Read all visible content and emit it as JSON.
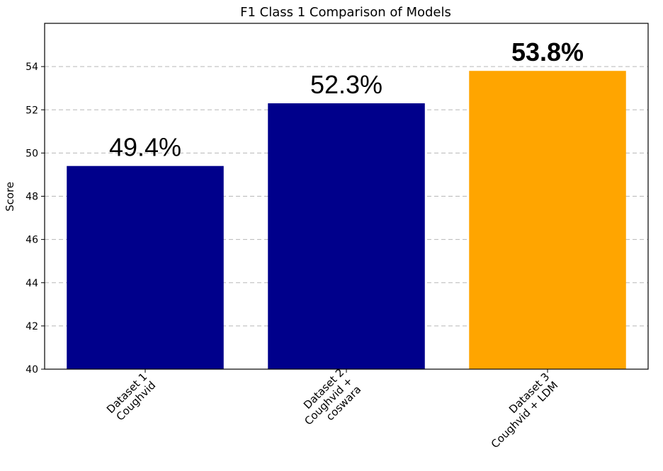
{
  "chart_data": {
    "type": "bar",
    "title": "F1 Class 1 Comparison of Models",
    "xlabel": "",
    "ylabel": "Score",
    "ylim": [
      40,
      56
    ],
    "yticks": [
      40,
      42,
      44,
      46,
      48,
      50,
      52,
      54
    ],
    "grid": true,
    "categories": [
      [
        "Dataset 1",
        "Coughvid"
      ],
      [
        "Dataset 2",
        "Coughvid +",
        "coswara"
      ],
      [
        "Dataset 3",
        "Coughvid + LDM"
      ]
    ],
    "values": [
      49.4,
      52.3,
      53.8
    ],
    "value_labels": [
      "49.4%",
      "52.3%",
      "53.8%"
    ],
    "value_label_bold": [
      false,
      false,
      true
    ],
    "colors": [
      "#00008b",
      "#00008b",
      "#ffa500"
    ]
  }
}
